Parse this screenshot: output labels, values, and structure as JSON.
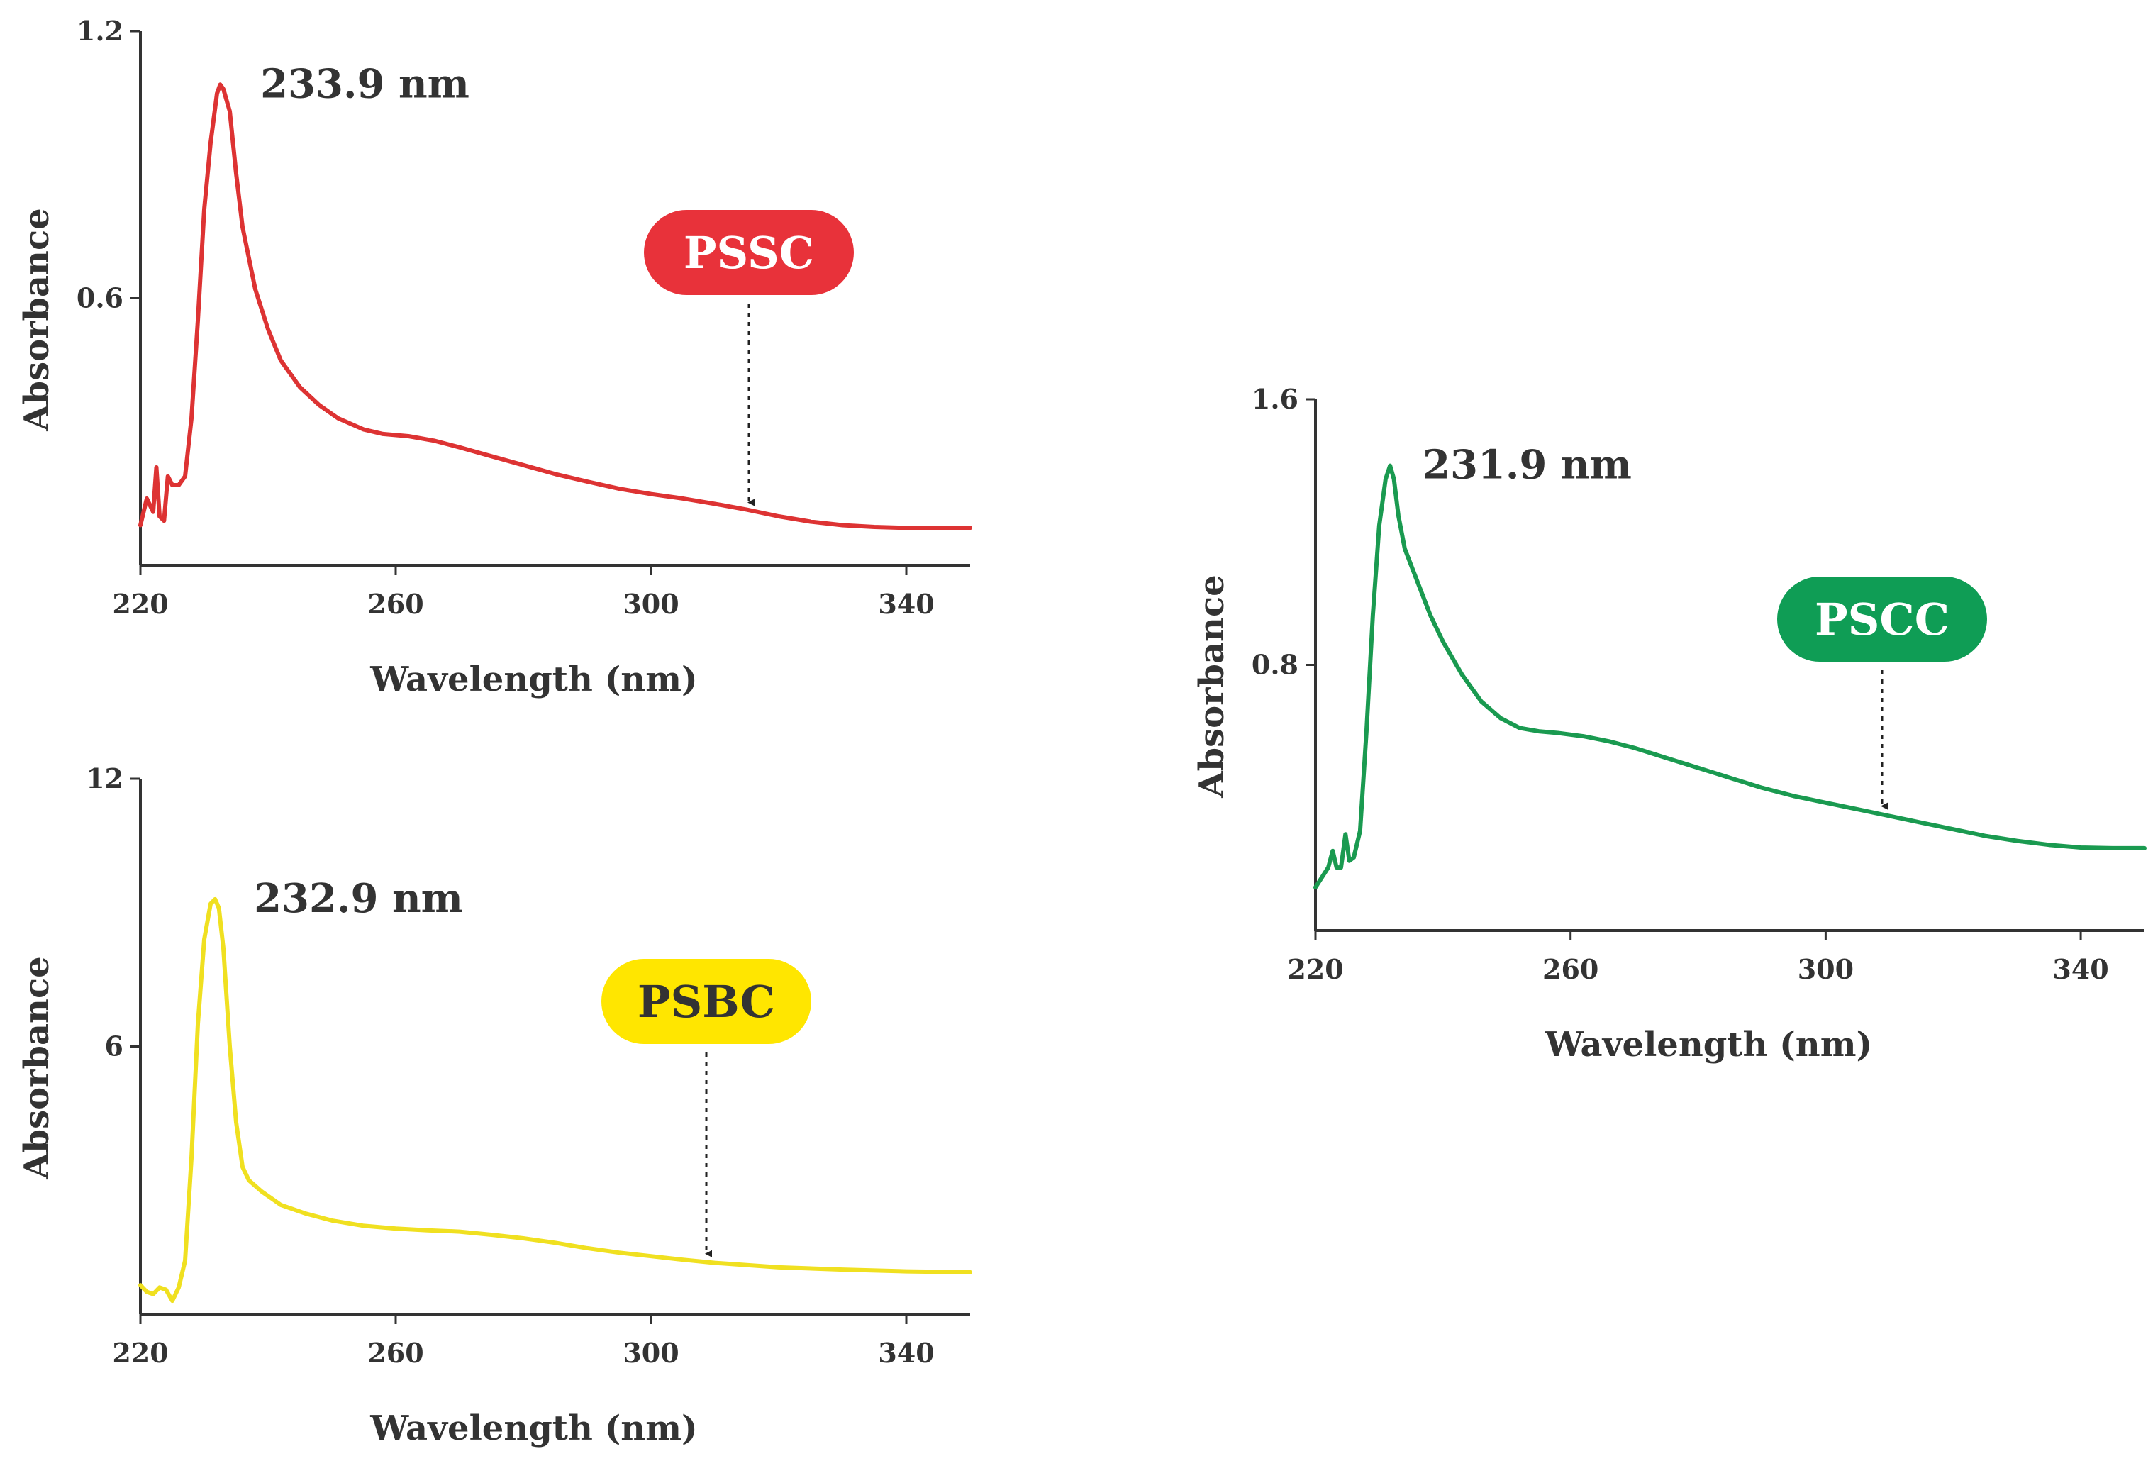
{
  "chart_data": [
    {
      "id": "pssc",
      "type": "line",
      "series_name": "PSSC",
      "color": "#dd3333",
      "badge_color": "#e8323a",
      "badge_text_color": "#ffffff",
      "xlabel": "Wavelength (nm)",
      "ylabel": "Absorbance",
      "xlim": [
        220,
        350
      ],
      "ylim": [
        0,
        1.2
      ],
      "xticks": [
        {
          "v": 220,
          "label": "220"
        },
        {
          "v": 260,
          "label": "260"
        },
        {
          "v": 300,
          "label": "300"
        },
        {
          "v": 340,
          "label": "340"
        }
      ],
      "yticks": [
        {
          "v": 0.6,
          "label": "0.6"
        },
        {
          "v": 1.2,
          "label": "1.2"
        }
      ],
      "peak_label": "233.9 nm",
      "peak": [
        233.9,
        1.08
      ],
      "arrow_x": 316,
      "points": [
        [
          220,
          0.09
        ],
        [
          221,
          0.15
        ],
        [
          222,
          0.12
        ],
        [
          222.5,
          0.22
        ],
        [
          223,
          0.11
        ],
        [
          223.7,
          0.1
        ],
        [
          224.3,
          0.2
        ],
        [
          225,
          0.18
        ],
        [
          226,
          0.18
        ],
        [
          227,
          0.2
        ],
        [
          228,
          0.33
        ],
        [
          229,
          0.55
        ],
        [
          230,
          0.8
        ],
        [
          231,
          0.95
        ],
        [
          232,
          1.06
        ],
        [
          232.5,
          1.08
        ],
        [
          233,
          1.07
        ],
        [
          234,
          1.02
        ],
        [
          235,
          0.88
        ],
        [
          236,
          0.76
        ],
        [
          238,
          0.62
        ],
        [
          240,
          0.53
        ],
        [
          242,
          0.46
        ],
        [
          245,
          0.4
        ],
        [
          248,
          0.36
        ],
        [
          251,
          0.33
        ],
        [
          255,
          0.305
        ],
        [
          258,
          0.295
        ],
        [
          262,
          0.29
        ],
        [
          266,
          0.28
        ],
        [
          270,
          0.265
        ],
        [
          275,
          0.245
        ],
        [
          280,
          0.225
        ],
        [
          285,
          0.205
        ],
        [
          290,
          0.188
        ],
        [
          295,
          0.172
        ],
        [
          300,
          0.16
        ],
        [
          305,
          0.15
        ],
        [
          310,
          0.138
        ],
        [
          315,
          0.125
        ],
        [
          320,
          0.11
        ],
        [
          325,
          0.098
        ],
        [
          330,
          0.09
        ],
        [
          335,
          0.086
        ],
        [
          340,
          0.084
        ],
        [
          345,
          0.084
        ],
        [
          350,
          0.084
        ]
      ]
    },
    {
      "id": "psbc",
      "type": "line",
      "series_name": "PSBC",
      "color": "#f0e020",
      "badge_color": "#ffe600",
      "badge_text_color": "#333333",
      "xlabel": "Wavelength (nm)",
      "ylabel": "Absorbance",
      "xlim": [
        220,
        350
      ],
      "ylim": [
        0,
        12
      ],
      "xticks": [
        {
          "v": 220,
          "label": "220"
        },
        {
          "v": 260,
          "label": "260"
        },
        {
          "v": 300,
          "label": "300"
        },
        {
          "v": 340,
          "label": "340"
        }
      ],
      "yticks": [
        {
          "v": 6,
          "label": "6"
        },
        {
          "v": 12,
          "label": "12"
        }
      ],
      "peak_label": "232.9 nm",
      "peak": [
        232.9,
        9.3
      ],
      "arrow_x": 309,
      "points": [
        [
          220,
          0.65
        ],
        [
          221,
          0.5
        ],
        [
          222,
          0.45
        ],
        [
          223,
          0.6
        ],
        [
          224,
          0.55
        ],
        [
          225,
          0.3
        ],
        [
          226,
          0.6
        ],
        [
          227,
          1.2
        ],
        [
          228,
          3.5
        ],
        [
          229,
          6.5
        ],
        [
          230,
          8.4
        ],
        [
          231,
          9.2
        ],
        [
          231.7,
          9.3
        ],
        [
          232.3,
          9.1
        ],
        [
          233,
          8.2
        ],
        [
          234,
          6.0
        ],
        [
          235,
          4.3
        ],
        [
          236,
          3.3
        ],
        [
          237,
          3.0
        ],
        [
          239,
          2.75
        ],
        [
          242,
          2.45
        ],
        [
          246,
          2.25
        ],
        [
          250,
          2.1
        ],
        [
          255,
          1.98
        ],
        [
          260,
          1.92
        ],
        [
          265,
          1.88
        ],
        [
          270,
          1.85
        ],
        [
          275,
          1.78
        ],
        [
          280,
          1.7
        ],
        [
          285,
          1.6
        ],
        [
          290,
          1.48
        ],
        [
          295,
          1.38
        ],
        [
          300,
          1.3
        ],
        [
          305,
          1.22
        ],
        [
          310,
          1.15
        ],
        [
          315,
          1.1
        ],
        [
          320,
          1.05
        ],
        [
          330,
          1.0
        ],
        [
          340,
          0.96
        ],
        [
          350,
          0.94
        ]
      ]
    },
    {
      "id": "pscc",
      "type": "line",
      "series_name": "PSCC",
      "color": "#1a9a50",
      "badge_color": "#0f9d55",
      "badge_text_color": "#ffffff",
      "xlabel": "Wavelength (nm)",
      "ylabel": "Absorbance",
      "xlim": [
        220,
        350
      ],
      "ylim": [
        0,
        1.6
      ],
      "xticks": [
        {
          "v": 220,
          "label": "220"
        },
        {
          "v": 260,
          "label": "260"
        },
        {
          "v": 300,
          "label": "300"
        },
        {
          "v": 340,
          "label": "340"
        }
      ],
      "yticks": [
        {
          "v": 0.8,
          "label": "0.8"
        },
        {
          "v": 1.6,
          "label": "1.6"
        }
      ],
      "peak_label": "231.9 nm",
      "peak": [
        231.9,
        1.4
      ],
      "arrow_x": 309,
      "points": [
        [
          220,
          0.13
        ],
        [
          221,
          0.16
        ],
        [
          222,
          0.19
        ],
        [
          222.7,
          0.24
        ],
        [
          223.3,
          0.19
        ],
        [
          224,
          0.19
        ],
        [
          224.7,
          0.29
        ],
        [
          225.3,
          0.21
        ],
        [
          226,
          0.22
        ],
        [
          227,
          0.3
        ],
        [
          228,
          0.6
        ],
        [
          229,
          0.95
        ],
        [
          230,
          1.22
        ],
        [
          231,
          1.36
        ],
        [
          231.7,
          1.4
        ],
        [
          232.3,
          1.36
        ],
        [
          233,
          1.25
        ],
        [
          234,
          1.15
        ],
        [
          236,
          1.05
        ],
        [
          238,
          0.95
        ],
        [
          240,
          0.87
        ],
        [
          243,
          0.77
        ],
        [
          246,
          0.69
        ],
        [
          249,
          0.64
        ],
        [
          252,
          0.61
        ],
        [
          255,
          0.6
        ],
        [
          258,
          0.595
        ],
        [
          262,
          0.585
        ],
        [
          266,
          0.57
        ],
        [
          270,
          0.55
        ],
        [
          275,
          0.52
        ],
        [
          280,
          0.49
        ],
        [
          285,
          0.46
        ],
        [
          290,
          0.43
        ],
        [
          295,
          0.405
        ],
        [
          300,
          0.385
        ],
        [
          305,
          0.365
        ],
        [
          310,
          0.345
        ],
        [
          315,
          0.325
        ],
        [
          320,
          0.305
        ],
        [
          325,
          0.285
        ],
        [
          330,
          0.27
        ],
        [
          335,
          0.258
        ],
        [
          340,
          0.25
        ],
        [
          345,
          0.248
        ],
        [
          350,
          0.248
        ]
      ]
    }
  ]
}
